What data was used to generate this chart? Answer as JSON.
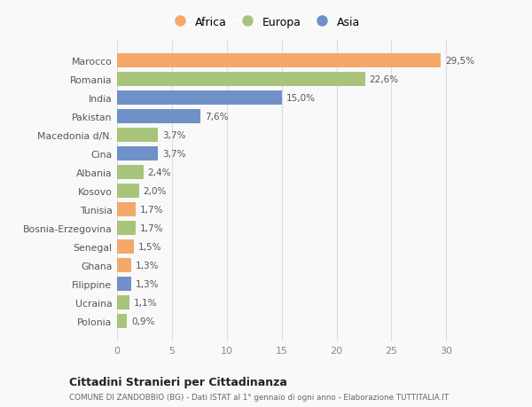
{
  "countries": [
    "Marocco",
    "Romania",
    "India",
    "Pakistan",
    "Macedonia d/N.",
    "Cina",
    "Albania",
    "Kosovo",
    "Tunisia",
    "Bosnia-Erzegovina",
    "Senegal",
    "Ghana",
    "Filippine",
    "Ucraina",
    "Polonia"
  ],
  "values": [
    29.5,
    22.6,
    15.0,
    7.6,
    3.7,
    3.7,
    2.4,
    2.0,
    1.7,
    1.7,
    1.5,
    1.3,
    1.3,
    1.1,
    0.9
  ],
  "labels": [
    "29,5%",
    "22,6%",
    "15,0%",
    "7,6%",
    "3,7%",
    "3,7%",
    "2,4%",
    "2,0%",
    "1,7%",
    "1,7%",
    "1,5%",
    "1,3%",
    "1,3%",
    "1,1%",
    "0,9%"
  ],
  "continents": [
    "Africa",
    "Europa",
    "Asia",
    "Asia",
    "Europa",
    "Asia",
    "Europa",
    "Europa",
    "Africa",
    "Europa",
    "Africa",
    "Africa",
    "Asia",
    "Europa",
    "Europa"
  ],
  "colors": {
    "Africa": "#F4A96A",
    "Europa": "#A8C47A",
    "Asia": "#7090C8"
  },
  "legend_order": [
    "Africa",
    "Europa",
    "Asia"
  ],
  "xlim": [
    0,
    32
  ],
  "xticks": [
    0,
    5,
    10,
    15,
    20,
    25,
    30
  ],
  "title": "Cittadini Stranieri per Cittadinanza",
  "subtitle": "COMUNE DI ZANDOBBIO (BG) - Dati ISTAT al 1° gennaio di ogni anno - Elaborazione TUTTITALIA.IT",
  "bg_color": "#f9f9f9",
  "grid_color": "#dddddd",
  "bar_height": 0.75
}
